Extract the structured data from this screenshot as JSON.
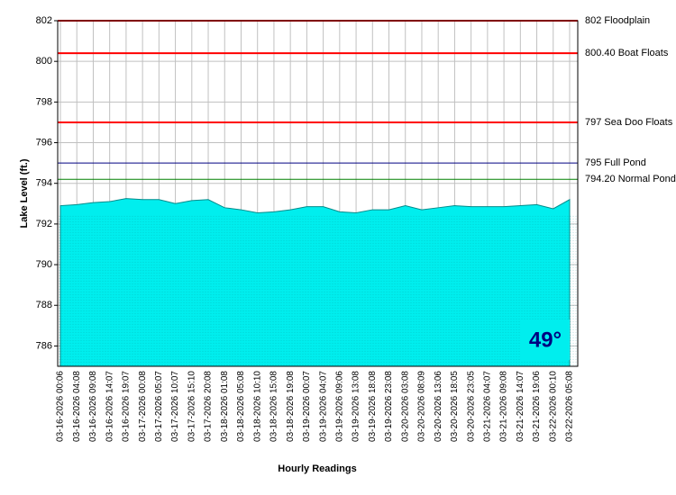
{
  "chart_data": {
    "type": "area",
    "y_label": "Lake Level (ft.)",
    "x_label": "Hourly Readings",
    "badge": "49°",
    "categories": [
      "03-16-2026 00:06",
      "03-16-2026 04:08",
      "03-16-2026 09:08",
      "03-16-2026 14:07",
      "03-16-2026 19:07",
      "03-17-2026 00:08",
      "03-17-2026 05:07",
      "03-17-2026 10:07",
      "03-17-2026 15:10",
      "03-17-2026 20:08",
      "03-18-2026 01:08",
      "03-18-2026 05:08",
      "03-18-2026 10:10",
      "03-18-2026 15:08",
      "03-18-2026 19:08",
      "03-19-2026 00:07",
      "03-19-2026 04:07",
      "03-19-2026 09:06",
      "03-19-2026 13:08",
      "03-19-2026 18:08",
      "03-19-2026 23:08",
      "03-20-2026 03:08",
      "03-20-2026 08:09",
      "03-20-2026 13:06",
      "03-20-2026 18:05",
      "03-20-2026 23:05",
      "03-21-2026 04:07",
      "03-21-2026 09:08",
      "03-21-2026 14:07",
      "03-21-2026 19:06",
      "03-22-2026 00:10",
      "03-22-2026 05:08"
    ],
    "values": [
      792.9,
      792.95,
      793.05,
      793.1,
      793.25,
      793.2,
      793.2,
      793.0,
      793.15,
      793.2,
      792.8,
      792.7,
      792.55,
      792.6,
      792.7,
      792.85,
      792.85,
      792.6,
      792.55,
      792.7,
      792.7,
      792.9,
      792.7,
      792.8,
      792.9,
      792.85,
      792.85,
      792.85,
      792.9,
      792.95,
      792.75,
      793.2
    ],
    "color": "#00eeee",
    "ylim": [
      785,
      802
    ],
    "yticks": [
      786,
      788,
      790,
      792,
      794,
      796,
      798,
      800,
      802
    ],
    "grid": true,
    "reference_lines": [
      {
        "value": 802,
        "label": "802 Floodplain",
        "color": "#ff0000"
      },
      {
        "value": 800.4,
        "label": "800.40 Boat Floats",
        "color": "#ff0000"
      },
      {
        "value": 797,
        "label": "797 Sea Doo Floats",
        "color": "#ff0000"
      },
      {
        "value": 795,
        "label": "795 Full Pond",
        "color": "#000080"
      },
      {
        "value": 794.2,
        "label": "794.20 Normal Pond",
        "color": "#008000"
      }
    ]
  }
}
